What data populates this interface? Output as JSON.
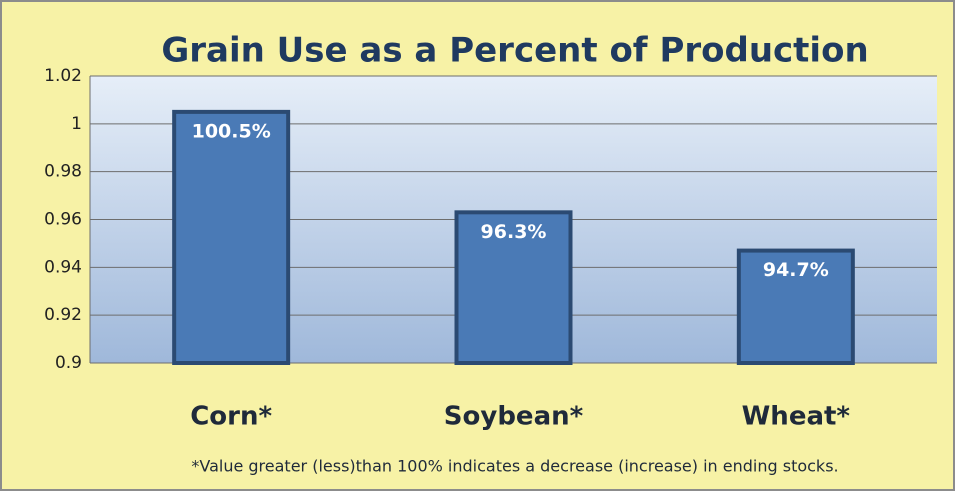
{
  "chart_data": {
    "type": "bar",
    "title": "Grain Use as a Percent of Production",
    "categories": [
      "Corn*",
      "Soybean*",
      "Wheat*"
    ],
    "values": [
      1.005,
      0.963,
      0.947
    ],
    "value_labels": [
      "100.5%",
      "96.3%",
      "94.7%"
    ],
    "color": "#4a7ab6",
    "ylim": [
      0.9,
      1.02
    ],
    "yticks": [
      0.9,
      0.92,
      0.94,
      0.96,
      0.98,
      1,
      1.02
    ],
    "grid": true,
    "annotation": "*Value greater (less)than 100% indicates a decrease (increase) in ending stocks."
  }
}
